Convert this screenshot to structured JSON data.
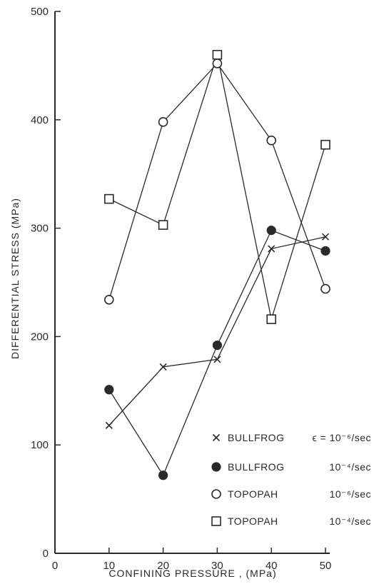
{
  "chart_data": {
    "type": "line",
    "xlabel": "CONFINING PRESSURE , (MPa)",
    "ylabel": "DIFFERENTIAL STRESS (MPa)",
    "xlim": [
      0,
      50
    ],
    "ylim": [
      0,
      500
    ],
    "x_ticks": [
      "0",
      "10",
      "20",
      "30",
      "40",
      "50"
    ],
    "y_ticks": [
      "0",
      "100",
      "200",
      "300",
      "400",
      "500"
    ],
    "grid": false,
    "legend_position": "bottom-right",
    "series": [
      {
        "name": "BULLFROG",
        "rate": "ϵ = 10⁻⁶/sec",
        "marker": "x",
        "points": [
          [
            10,
            118
          ],
          [
            20,
            172
          ],
          [
            30,
            179
          ],
          [
            40,
            281
          ],
          [
            50,
            292
          ]
        ]
      },
      {
        "name": "BULLFROG",
        "rate": "10⁻⁴/sec",
        "marker": "filled-circle",
        "points": [
          [
            10,
            151
          ],
          [
            20,
            72
          ],
          [
            30,
            192
          ],
          [
            40,
            298
          ],
          [
            50,
            279
          ]
        ]
      },
      {
        "name": "TOPOPAH",
        "rate": "10⁻⁶/sec",
        "marker": "open-circle",
        "points": [
          [
            10,
            234
          ],
          [
            20,
            398
          ],
          [
            30,
            452
          ],
          [
            40,
            381
          ],
          [
            50,
            244
          ]
        ]
      },
      {
        "name": "TOPOPAH",
        "rate": "10⁻⁴/sec",
        "marker": "open-square",
        "points": [
          [
            10,
            327
          ],
          [
            20,
            303
          ],
          [
            30,
            460
          ],
          [
            40,
            216
          ],
          [
            50,
            377
          ]
        ]
      }
    ]
  }
}
